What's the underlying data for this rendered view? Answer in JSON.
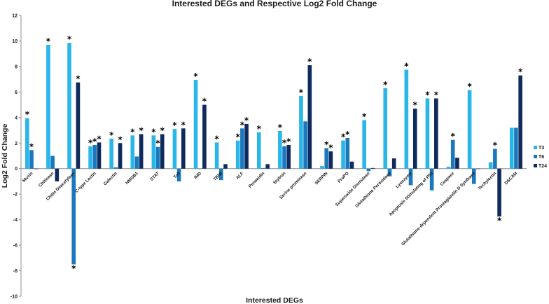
{
  "chart_data": {
    "type": "bar",
    "title": "Interested DEGs and Respective Log2 Fold Change",
    "xlabel": "Interested DEGs",
    "ylabel": "Log2 Fold Change",
    "ylim": [
      -10,
      12
    ],
    "yticks": [
      -10,
      -8,
      -6,
      -4,
      -2,
      0,
      2,
      4,
      6,
      8,
      10,
      12
    ],
    "grid": false,
    "legend_position": "right",
    "significance_marker": "*",
    "categories": [
      "Mucin",
      "Chitinase",
      "Chitin Deacetylase",
      "C-type Lectin",
      "Galectin",
      "HMGB1",
      "STAT",
      "Toll",
      "IMD",
      "TBMI",
      "ALF",
      "Penaeidin",
      "Stylicin",
      "Serine proteinase",
      "SERPIN",
      "ProPO",
      "Superoxide Dismutase",
      "Glutathione Peroxidase",
      "Lysozyme",
      "Apoptosis Stimulating of P53",
      "Caspase",
      "Glutathione-dependent Prostaglandin D Synthase",
      "Techylectin",
      "DSCAM"
    ],
    "series": [
      {
        "name": "T3",
        "color": "#29b6e8",
        "values": [
          3.95,
          9.7,
          9.85,
          1.75,
          2.35,
          2.6,
          2.6,
          3.1,
          6.95,
          2.05,
          2.2,
          2.85,
          2.95,
          5.7,
          0.2,
          2.2,
          3.8,
          6.3,
          7.75,
          5.5,
          0.15,
          6.15,
          0.5,
          3.2
        ],
        "sig": [
          true,
          true,
          true,
          true,
          true,
          true,
          true,
          true,
          true,
          true,
          true,
          true,
          true,
          true,
          false,
          true,
          true,
          true,
          true,
          true,
          false,
          true,
          false,
          false
        ]
      },
      {
        "name": "T6",
        "color": "#1a78be",
        "values": [
          1.45,
          1.0,
          -7.5,
          1.85,
          0.1,
          0.95,
          1.7,
          -1.0,
          0.0,
          -0.9,
          3.15,
          0.05,
          1.75,
          3.7,
          1.6,
          2.4,
          -0.2,
          -0.6,
          -1.3,
          -1.7,
          2.25,
          -1.2,
          1.55,
          3.2
        ],
        "sig": [
          true,
          false,
          true,
          true,
          false,
          false,
          true,
          false,
          false,
          false,
          true,
          false,
          true,
          false,
          true,
          true,
          false,
          false,
          false,
          false,
          true,
          false,
          true,
          false
        ]
      },
      {
        "name": "T24",
        "color": "#0f2a5c",
        "values": [
          0.0,
          -1.0,
          6.75,
          2.05,
          2.0,
          2.7,
          2.7,
          3.15,
          5.0,
          0.35,
          3.5,
          0.35,
          1.85,
          8.1,
          1.35,
          0.55,
          0.05,
          0.8,
          4.7,
          5.5,
          0.85,
          0.0,
          -3.75,
          7.3
        ],
        "sig": [
          false,
          false,
          true,
          true,
          true,
          true,
          true,
          true,
          true,
          false,
          true,
          false,
          true,
          true,
          true,
          false,
          false,
          false,
          true,
          true,
          false,
          false,
          true,
          true
        ]
      }
    ]
  }
}
